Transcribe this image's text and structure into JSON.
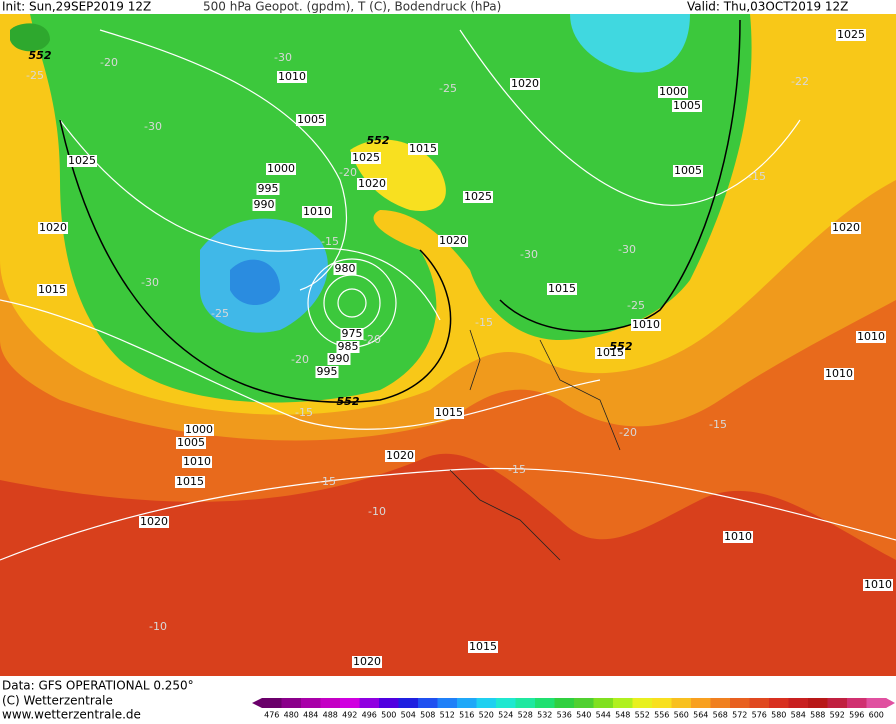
{
  "header": {
    "init": "Init: Sun,29SEP2019 12Z",
    "title": "500 hPa Geopot. (gpdm), T (C), Bodendruck (hPa)",
    "valid": "Valid: Thu,03OCT2019 12Z"
  },
  "map": {
    "pressure_labels": [
      1010,
      1005,
      1000,
      995,
      990,
      1010,
      1025,
      1020,
      1015,
      1025,
      1020,
      1015,
      1020,
      1000,
      1005,
      1005,
      1025,
      1020,
      980,
      975,
      985,
      990,
      995,
      1015,
      1010,
      1015,
      1025,
      1020,
      1010,
      1010,
      1015,
      1000,
      1005,
      1010,
      1015,
      1020,
      1020,
      1010,
      1010,
      1015,
      1020
    ],
    "height_labels": [
      552,
      552,
      552,
      552
    ],
    "temperature_labels": [
      -25,
      -20,
      -30,
      -30,
      -25,
      -20,
      -15,
      -30,
      -25,
      -20,
      -15,
      -30,
      -30,
      -25,
      -15,
      -22,
      -15,
      -20,
      -15,
      -15,
      -15,
      -10,
      -10,
      -20
    ]
  },
  "footer": {
    "data": "Data: GFS OPERATIONAL 0.250°",
    "copyright": "(C) Wetterzentrale",
    "url": "www.wetterzentrale.de"
  },
  "colorbar": {
    "labels": [
      476,
      480,
      484,
      488,
      492,
      496,
      500,
      504,
      508,
      512,
      516,
      520,
      524,
      528,
      532,
      536,
      540,
      544,
      548,
      552,
      556,
      560,
      564,
      568,
      572,
      576,
      580,
      584,
      588,
      592,
      596,
      600
    ],
    "colors": [
      "#6a006a",
      "#8a008a",
      "#a800a8",
      "#c400c4",
      "#d000e0",
      "#9000e0",
      "#5000e0",
      "#2020e0",
      "#2050f0",
      "#2080f8",
      "#20a8f8",
      "#20d0f0",
      "#20e8d0",
      "#20e8a0",
      "#20e070",
      "#30d040",
      "#50d030",
      "#80e020",
      "#b0f020",
      "#e8f020",
      "#f8e020",
      "#f8c020",
      "#f8a020",
      "#f08020",
      "#e86020",
      "#e04820",
      "#d83020",
      "#c82020",
      "#b81818",
      "#c02040",
      "#d03070",
      "#e050a0"
    ]
  }
}
